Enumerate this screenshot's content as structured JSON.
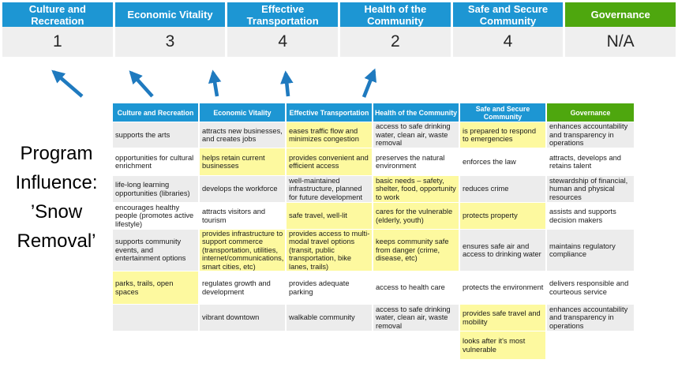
{
  "title": {
    "line1": "Program Influence:",
    "line2": "’Snow Removal’"
  },
  "colors": {
    "header_blue": "#1D96D3",
    "governance_green": "#4EA70E",
    "arrow_blue": "#1F7ABF",
    "highlight_yellow": "#FDF99F",
    "row_stripe_grey": "#ECECEC",
    "score_row_grey": "#EFEFEF"
  },
  "top_band": {
    "items": [
      {
        "label": "Culture and Recreation",
        "value": "1",
        "color": "blue"
      },
      {
        "label": "Economic Vitality",
        "value": "3",
        "color": "blue"
      },
      {
        "label": "Effective Transportation",
        "value": "4",
        "color": "blue"
      },
      {
        "label": "Health of the Community",
        "value": "2",
        "color": "blue"
      },
      {
        "label": "Safe and Secure Community",
        "value": "4",
        "color": "blue"
      },
      {
        "label": "Governance",
        "value": "N/A",
        "color": "green"
      }
    ]
  },
  "matrix": {
    "columns": [
      {
        "label": "Culture and Recreation",
        "color": "blue",
        "cells": [
          {
            "text": "supports the arts",
            "highlight": false
          },
          {
            "text": "opportunities for cultural enrichment",
            "highlight": false
          },
          {
            "text": "life-long learning opportunities (libraries)",
            "highlight": false
          },
          {
            "text": "encourages healthy people (promotes active lifestyle)",
            "highlight": false
          },
          {
            "text": "supports community events, and entertainment options",
            "highlight": false
          },
          {
            "text": "parks, trails, open spaces",
            "highlight": true
          },
          {
            "text": "",
            "highlight": false
          },
          {
            "text": "",
            "highlight": false
          }
        ]
      },
      {
        "label": "Economic Vitality",
        "color": "blue",
        "cells": [
          {
            "text": "attracts new businesses, and creates jobs",
            "highlight": false
          },
          {
            "text": "helps retain current businesses",
            "highlight": true
          },
          {
            "text": "develops the workforce",
            "highlight": false
          },
          {
            "text": "attracts visitors and tourism",
            "highlight": false
          },
          {
            "text": "provides infrastructure to support commerce (transportation, utilities, internet/communications, smart cities, etc)",
            "highlight": true
          },
          {
            "text": "regulates growth and development",
            "highlight": false
          },
          {
            "text": "vibrant downtown",
            "highlight": false
          },
          {
            "text": "",
            "highlight": false
          }
        ]
      },
      {
        "label": "Effective Transportation",
        "color": "blue",
        "cells": [
          {
            "text": "eases traffic flow and minimizes congestion",
            "highlight": true
          },
          {
            "text": "provides convenient and efficient access",
            "highlight": true
          },
          {
            "text": "well-maintained infrastructure, planned for future development",
            "highlight": false
          },
          {
            "text": "safe travel, well-lit",
            "highlight": true
          },
          {
            "text": "provides access to multi-modal travel options (transit, public transportation, bike lanes, trails)",
            "highlight": true
          },
          {
            "text": "provides adequate parking",
            "highlight": false
          },
          {
            "text": "walkable community",
            "highlight": false
          },
          {
            "text": "",
            "highlight": false
          }
        ]
      },
      {
        "label": "Health of the Community",
        "color": "blue",
        "cells": [
          {
            "text": "access to safe drinking water, clean air, waste removal",
            "highlight": false
          },
          {
            "text": "preserves the natural environment",
            "highlight": false
          },
          {
            "text": "basic needs – safety, shelter, food, opportunity to work",
            "highlight": true
          },
          {
            "text": "cares for the vulnerable (elderly, youth)",
            "highlight": true
          },
          {
            "text": "keeps community safe from danger (crime, disease, etc)",
            "highlight": true
          },
          {
            "text": "access to health care",
            "highlight": false
          },
          {
            "text": "access to safe drinking water, clean air, waste removal",
            "highlight": false
          },
          {
            "text": "",
            "highlight": false
          }
        ]
      },
      {
        "label": "Safe and Secure Community",
        "color": "blue",
        "cells": [
          {
            "text": "is prepared to respond to emergencies",
            "highlight": true
          },
          {
            "text": "enforces the law",
            "highlight": false
          },
          {
            "text": "reduces crime",
            "highlight": false
          },
          {
            "text": "protects property",
            "highlight": true
          },
          {
            "text": "ensures safe air and access to drinking water",
            "highlight": false
          },
          {
            "text": "protects the environment",
            "highlight": false
          },
          {
            "text": "provides safe travel and mobility",
            "highlight": true
          },
          {
            "text": "looks after it's most vulnerable",
            "highlight": true
          }
        ]
      },
      {
        "label": "Governance",
        "color": "green",
        "cells": [
          {
            "text": "enhances accountability and transparency in operations",
            "highlight": false
          },
          {
            "text": "attracts, develops and retains talent",
            "highlight": false
          },
          {
            "text": "stewardship of financial, human and physical resources",
            "highlight": false
          },
          {
            "text": "assists and supports decision makers",
            "highlight": false
          },
          {
            "text": "maintains regulatory compliance",
            "highlight": false
          },
          {
            "text": "delivers responsible and courteous service",
            "highlight": false
          },
          {
            "text": "enhances accountability and transparency in operations",
            "highlight": false
          },
          {
            "text": "",
            "highlight": false
          }
        ]
      }
    ]
  }
}
